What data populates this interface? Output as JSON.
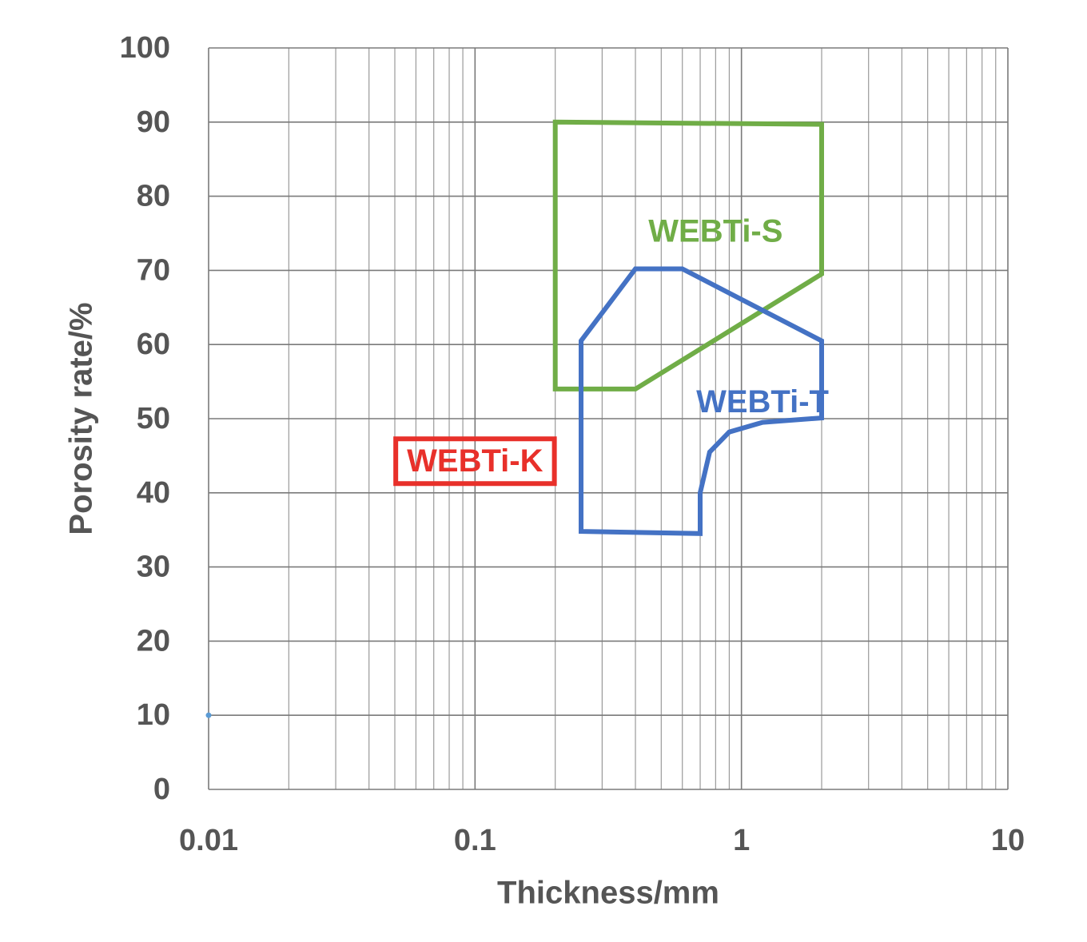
{
  "chart_data": {
    "type": "scatter",
    "xlabel": "Thickness/mm",
    "ylabel": "Porosity rate/%",
    "xscale": "log",
    "xlim": [
      0.01,
      10
    ],
    "ylim": [
      0,
      100
    ],
    "grid": true,
    "x_ticks": [
      "0.01",
      "0.1",
      "1",
      "10"
    ],
    "y_ticks": [
      "0",
      "10",
      "20",
      "30",
      "40",
      "50",
      "60",
      "70",
      "80",
      "90",
      "100"
    ],
    "points": [
      {
        "x": 0.01,
        "y": 10,
        "color": "#5b9bd5"
      }
    ],
    "regions": [
      {
        "name": "WEBTi-S",
        "color": "#70ad47",
        "label_at": {
          "x": 0.8,
          "y": 75
        },
        "label_box": false,
        "polygon": [
          [
            0.2,
            90
          ],
          [
            2.0,
            89.7
          ],
          [
            2.0,
            69.5
          ],
          [
            0.4,
            54
          ],
          [
            0.2,
            54
          ]
        ]
      },
      {
        "name": "WEBTi-T",
        "color": "#4472c4",
        "label_at": {
          "x": 1.2,
          "y": 52
        },
        "label_box": false,
        "polygon": [
          [
            0.25,
            60.5
          ],
          [
            0.4,
            70.2
          ],
          [
            0.6,
            70.2
          ],
          [
            2.0,
            60.5
          ],
          [
            2.0,
            50.1
          ],
          [
            1.2,
            49.5
          ],
          [
            0.9,
            48.2
          ],
          [
            0.76,
            45.5
          ],
          [
            0.7,
            40
          ],
          [
            0.7,
            34.5
          ],
          [
            0.25,
            34.8
          ]
        ]
      },
      {
        "name": "WEBTi-K",
        "color": "#e8302a",
        "label_at": {
          "x": 0.1,
          "y": 44
        },
        "label_box": true,
        "polygon": []
      }
    ]
  }
}
